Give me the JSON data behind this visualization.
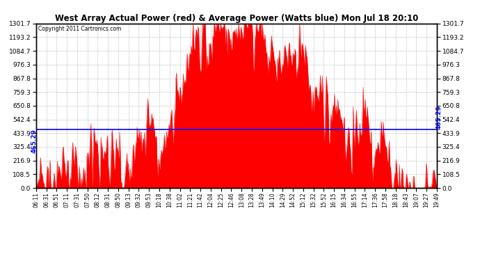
{
  "title": "West Array Actual Power (red) & Average Power (Watts blue) Mon Jul 18 20:10",
  "copyright": "Copyright 2011 Cartronics.com",
  "avg_power": 465.29,
  "ymax": 1301.7,
  "ymin": 0.0,
  "yticks": [
    0.0,
    108.5,
    216.9,
    325.4,
    433.9,
    542.4,
    650.8,
    759.3,
    867.8,
    976.3,
    1084.7,
    1193.2,
    1301.7
  ],
  "bg_color": "#ffffff",
  "plot_bg": "#ffffff",
  "grid_color": "#aaaaaa",
  "line_color": "blue",
  "fill_color": "red",
  "avg_label": "465.29",
  "x_labels": [
    "06:11",
    "06:31",
    "06:51",
    "07:11",
    "07:31",
    "07:50",
    "08:12",
    "08:31",
    "08:50",
    "09:13",
    "09:32",
    "09:53",
    "10:18",
    "10:38",
    "11:02",
    "11:21",
    "11:42",
    "12:04",
    "12:25",
    "12:46",
    "13:08",
    "13:28",
    "13:49",
    "14:10",
    "14:29",
    "14:52",
    "15:12",
    "15:32",
    "15:52",
    "16:15",
    "16:34",
    "16:55",
    "17:14",
    "17:36",
    "17:58",
    "18:18",
    "18:43",
    "19:07",
    "19:27",
    "19:49"
  ]
}
